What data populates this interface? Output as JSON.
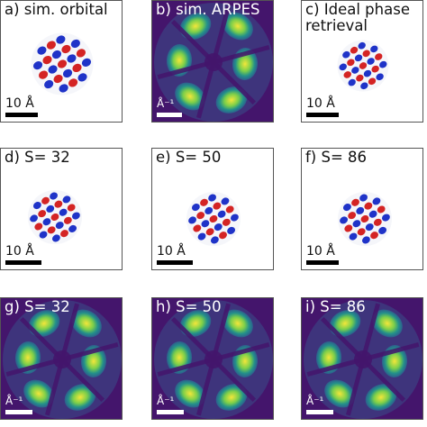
{
  "colors": {
    "orbital_positive": "#d42424",
    "orbital_negative": "#1f33c8",
    "arpes_background": "#44156c",
    "arpes_lobe": "#f3e63a",
    "scale_bar_dark": "#000000",
    "scale_bar_light": "#ffffff"
  },
  "panels": [
    {
      "id": "a",
      "label": "a) sim. orbital",
      "kind": "orbital",
      "scale_bar": "10 Å"
    },
    {
      "id": "b",
      "label": "b) sim. ARPES",
      "kind": "arpes",
      "scale_bar": "Å⁻¹"
    },
    {
      "id": "c",
      "label": "c) Ideal phase\nretrieval",
      "kind": "orbital",
      "scale_bar": "10 Å"
    },
    {
      "id": "d",
      "label": "d) S= 32",
      "kind": "orbital",
      "scale_bar": "10 Å"
    },
    {
      "id": "e",
      "label": "e) S= 50",
      "kind": "orbital",
      "scale_bar": "10 Å"
    },
    {
      "id": "f",
      "label": "f) S= 86",
      "kind": "orbital",
      "scale_bar": "10 Å"
    },
    {
      "id": "g",
      "label": "g) S= 32",
      "kind": "arpes",
      "scale_bar": "Å⁻¹"
    },
    {
      "id": "h",
      "label": "h) S= 50",
      "kind": "arpes",
      "scale_bar": "Å⁻¹"
    },
    {
      "id": "i",
      "label": "i) S= 86",
      "kind": "arpes",
      "scale_bar": "Å⁻¹"
    }
  ]
}
